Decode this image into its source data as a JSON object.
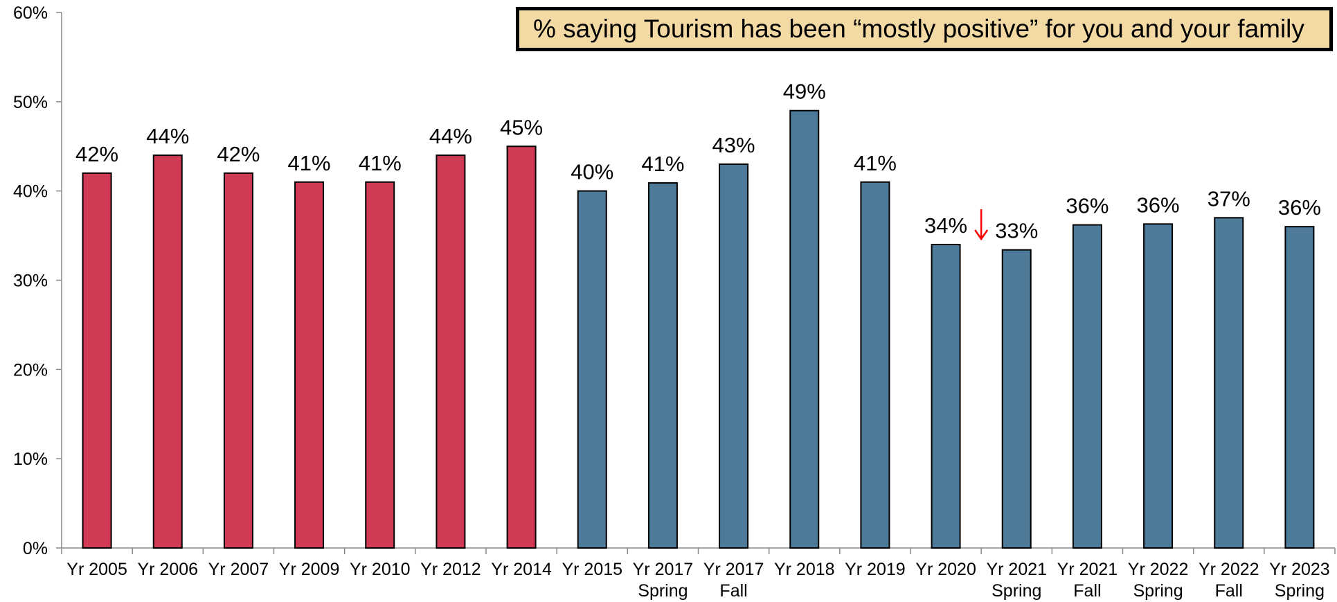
{
  "chart_data": {
    "type": "bar",
    "title": "% saying Tourism has been “mostly positive” for you and your family",
    "xlabel": "",
    "ylabel": "",
    "ylim": [
      0,
      60
    ],
    "yticks": [
      "0%",
      "10%",
      "20%",
      "30%",
      "40%",
      "50%",
      "60%"
    ],
    "grid": false,
    "categories": [
      "Yr 2005",
      "Yr 2006",
      "Yr 2007",
      "Yr 2009",
      "Yr 2010",
      "Yr 2012",
      "Yr 2014",
      "Yr 2015",
      "Yr 2017 Spring",
      "Yr 2017 Fall",
      "Yr 2018",
      "Yr 2019",
      "Yr 2020",
      "Yr 2021 Spring",
      "Yr 2021 Fall",
      "Yr 2022 Spring",
      "Yr 2022 Fall",
      "Yr 2023 Spring"
    ],
    "category_lines": [
      [
        "Yr 2005"
      ],
      [
        "Yr 2006"
      ],
      [
        "Yr 2007"
      ],
      [
        "Yr 2009"
      ],
      [
        "Yr 2010"
      ],
      [
        "Yr 2012"
      ],
      [
        "Yr 2014"
      ],
      [
        "Yr 2015"
      ],
      [
        "Yr 2017",
        "Spring"
      ],
      [
        "Yr 2017",
        "Fall"
      ],
      [
        "Yr 2018"
      ],
      [
        "Yr 2019"
      ],
      [
        "Yr 2020"
      ],
      [
        "Yr 2021",
        "Spring"
      ],
      [
        "Yr 2021",
        "Fall"
      ],
      [
        "Yr 2022",
        "Spring"
      ],
      [
        "Yr 2022",
        "Fall"
      ],
      [
        "Yr 2023",
        "Spring"
      ]
    ],
    "values": [
      42,
      44,
      42,
      41,
      41,
      44,
      45,
      40,
      40.9,
      43,
      49,
      41,
      34,
      33.4,
      36.2,
      36.3,
      37,
      36
    ],
    "data_labels": [
      "42%",
      "44%",
      "42%",
      "41%",
      "41%",
      "44%",
      "45%",
      "40%",
      "41%",
      "43%",
      "49%",
      "41%",
      "34%",
      "33%",
      "36%",
      "36%",
      "37%",
      "36%"
    ],
    "bar_colors": [
      "#d03a55",
      "#d03a55",
      "#d03a55",
      "#d03a55",
      "#d03a55",
      "#d03a55",
      "#d03a55",
      "#4e7a99",
      "#4e7a99",
      "#4e7a99",
      "#4e7a99",
      "#4e7a99",
      "#4e7a99",
      "#4e7a99",
      "#4e7a99",
      "#4e7a99",
      "#4e7a99",
      "#4e7a99"
    ],
    "annotation": {
      "type": "down-arrow",
      "category_index": 12,
      "color": "#ff0000"
    },
    "title_box_color": "#f3d9a4"
  }
}
